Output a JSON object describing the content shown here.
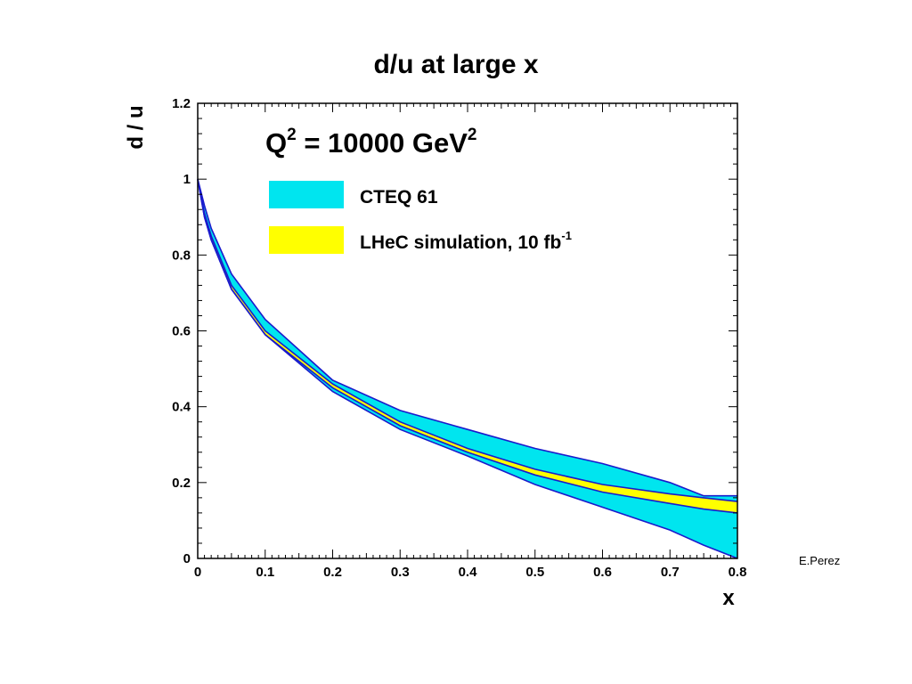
{
  "slide": {
    "title": "d/u at large x",
    "credit": "E.Perez"
  },
  "colors": {
    "cteq_band": "#00e5ef",
    "lhec_band": "#ffff00",
    "band_edge": "#1a1acc",
    "axis": "#000000"
  },
  "chart_data": {
    "type": "area",
    "title": "",
    "annotation": {
      "base": "Q",
      "sup1": "2",
      "middle": " = 10000 GeV",
      "sup2": "2"
    },
    "xlabel": "x",
    "ylabel": "d / u",
    "xlim": [
      0,
      0.8
    ],
    "ylim": [
      0,
      1.2
    ],
    "x_ticks": [
      "0",
      "0.1",
      "0.2",
      "0.3",
      "0.4",
      "0.5",
      "0.6",
      "0.7",
      "0.8"
    ],
    "y_ticks": [
      "0",
      "0.2",
      "0.4",
      "0.6",
      "0.8",
      "1",
      "1.2"
    ],
    "grid": false,
    "legend_placement": "top-left",
    "legend": [
      {
        "name": "CTEQ 61",
        "sup": "",
        "color": "#00e5ef"
      },
      {
        "name": "LHeC simulation, 10 fb",
        "sup": "-1",
        "color": "#ffff00"
      }
    ],
    "x": [
      0.0,
      0.01,
      0.02,
      0.05,
      0.1,
      0.2,
      0.3,
      0.4,
      0.5,
      0.6,
      0.7,
      0.75,
      0.8
    ],
    "series": [
      {
        "name": "CTEQ 61",
        "upper": [
          1.0,
          0.93,
          0.87,
          0.75,
          0.63,
          0.47,
          0.39,
          0.34,
          0.29,
          0.25,
          0.2,
          0.165,
          0.165
        ],
        "lower": [
          1.0,
          0.9,
          0.84,
          0.71,
          0.59,
          0.44,
          0.34,
          0.27,
          0.195,
          0.135,
          0.075,
          0.035,
          0.0
        ]
      },
      {
        "name": "LHeC simulation, 10 fb-1",
        "upper": [
          1.0,
          0.91,
          0.85,
          0.72,
          0.6,
          0.46,
          0.36,
          0.29,
          0.235,
          0.195,
          0.17,
          0.16,
          0.15
        ],
        "lower": [
          1.0,
          0.9,
          0.84,
          0.71,
          0.59,
          0.45,
          0.35,
          0.28,
          0.22,
          0.175,
          0.145,
          0.13,
          0.12
        ]
      }
    ]
  }
}
